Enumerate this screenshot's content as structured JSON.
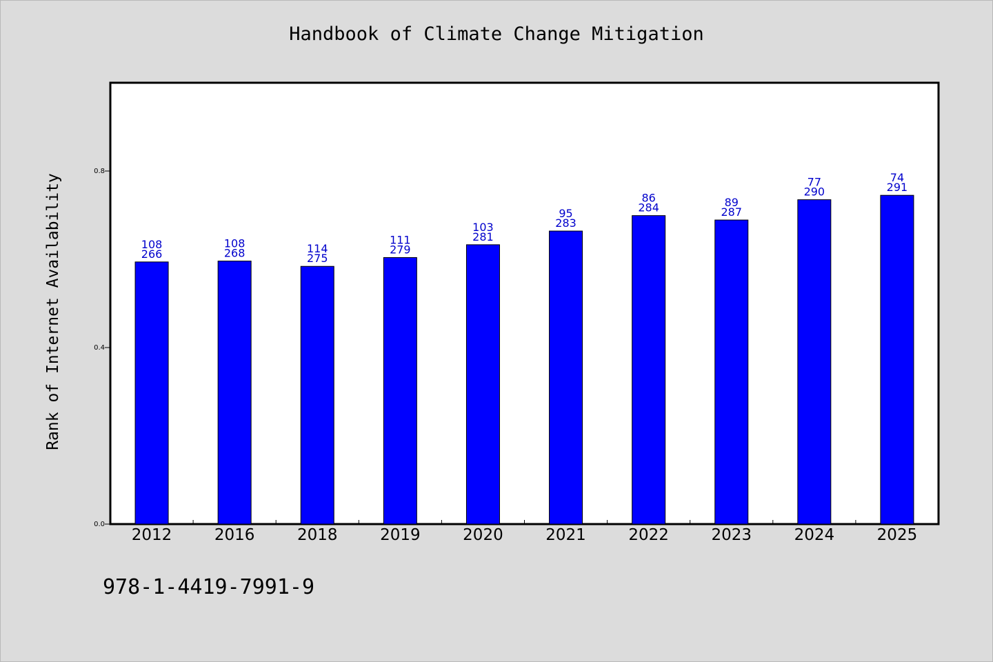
{
  "title": "Handbook of Climate Change Mitigation",
  "ylabel": "Rank of Internet Availability",
  "footer": "978-1-4419-7991-9",
  "colors": {
    "bar": "#0000ff",
    "label": "#0000cc",
    "background": "#dcdcdc",
    "plot": "#ffffff"
  },
  "chart_data": {
    "type": "bar",
    "title": "Handbook of Climate Change Mitigation",
    "xlabel": "",
    "ylabel": "Rank of Internet Availability",
    "categories": [
      "2012",
      "2016",
      "2018",
      "2019",
      "2020",
      "2021",
      "2022",
      "2023",
      "2024",
      "2025"
    ],
    "values": [
      0.594,
      0.596,
      0.584,
      0.604,
      0.633,
      0.664,
      0.699,
      0.689,
      0.735,
      0.745
    ],
    "labels_top": [
      "108",
      "108",
      "114",
      "111",
      "103",
      "95",
      "86",
      "89",
      "77",
      "74"
    ],
    "labels_bottom": [
      "266",
      "268",
      "275",
      "279",
      "281",
      "283",
      "284",
      "287",
      "290",
      "291"
    ],
    "ylim": [
      0,
      1.0
    ],
    "yticks": [
      0.0,
      0.4,
      0.8
    ],
    "ytick_labels": [
      "0.0",
      "0.4",
      "0.8"
    ],
    "grid": false,
    "legend": "none"
  }
}
